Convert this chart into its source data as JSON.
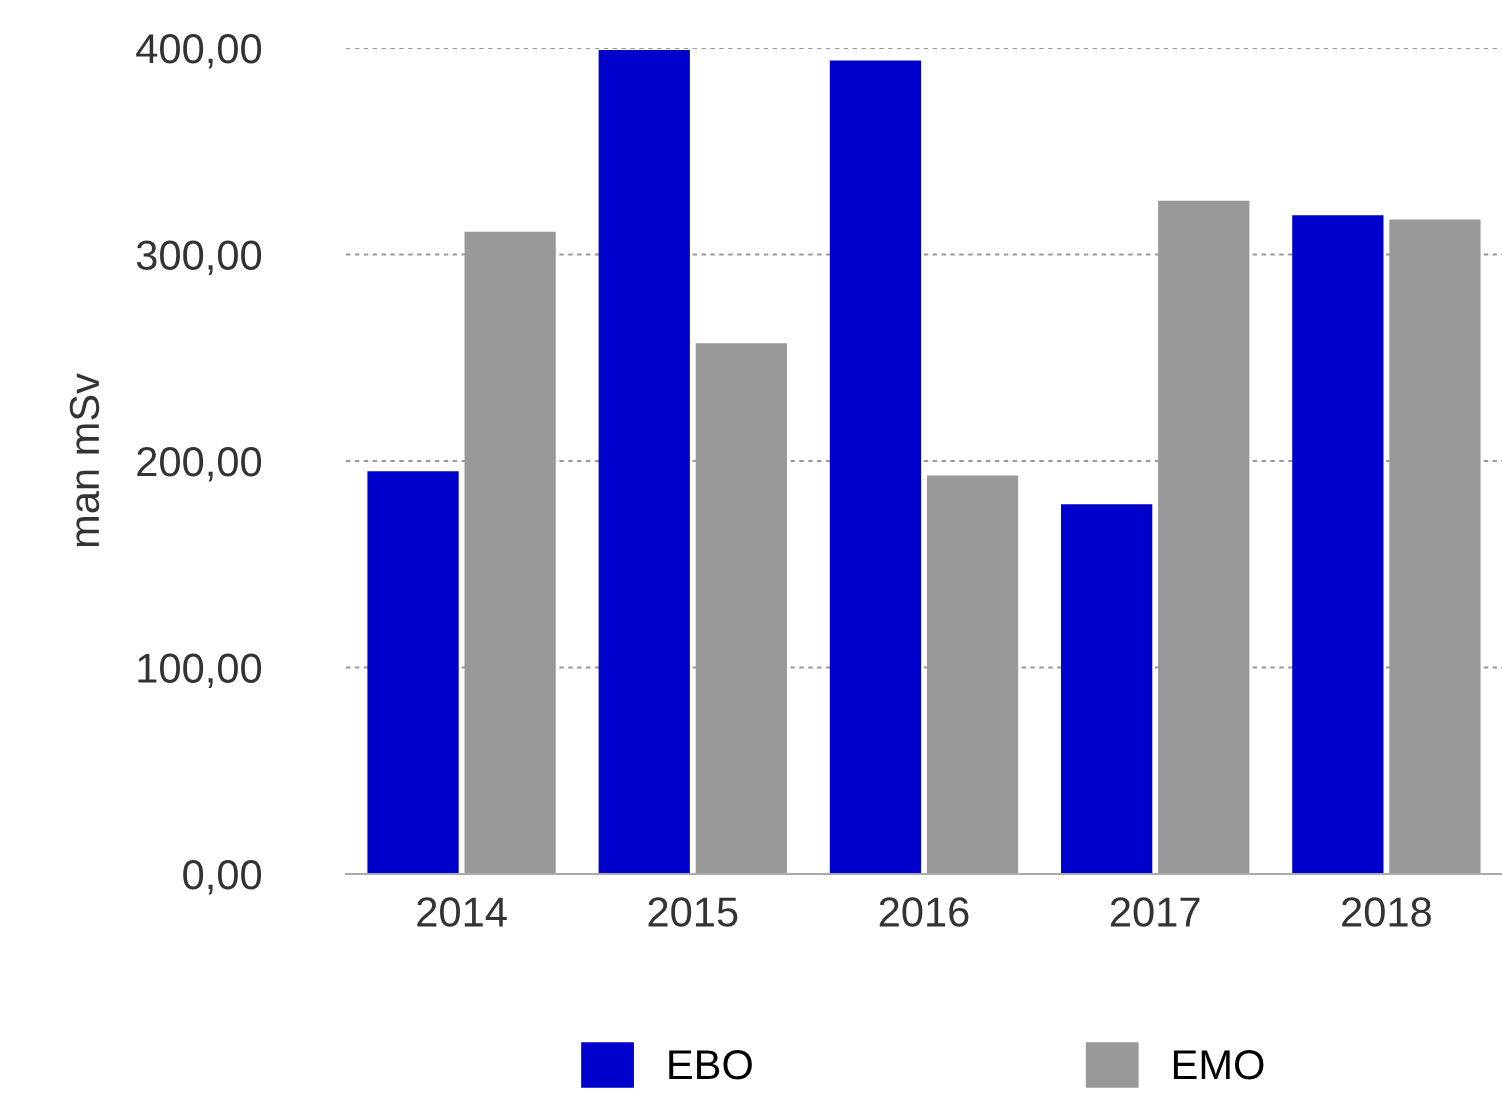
{
  "chart_data": {
    "type": "bar",
    "ylabel": "man mSv",
    "categories": [
      "2014",
      "2015",
      "2016",
      "2017",
      "2018"
    ],
    "series": [
      {
        "name": "EBO",
        "color": "#0000cc",
        "values": [
          195,
          399,
          394,
          179,
          319
        ]
      },
      {
        "name": "EMO",
        "color": "#999999",
        "values": [
          311,
          257,
          193,
          326,
          317
        ]
      }
    ],
    "ylim": [
      0,
      400
    ],
    "yticks": [
      {
        "value": 0,
        "label": "0,00"
      },
      {
        "value": 100,
        "label": "100,00"
      },
      {
        "value": 200,
        "label": "200,00"
      },
      {
        "value": 300,
        "label": "300,00"
      },
      {
        "value": 400,
        "label": "400,00"
      }
    ],
    "grid": "y",
    "legend": "bottom"
  }
}
